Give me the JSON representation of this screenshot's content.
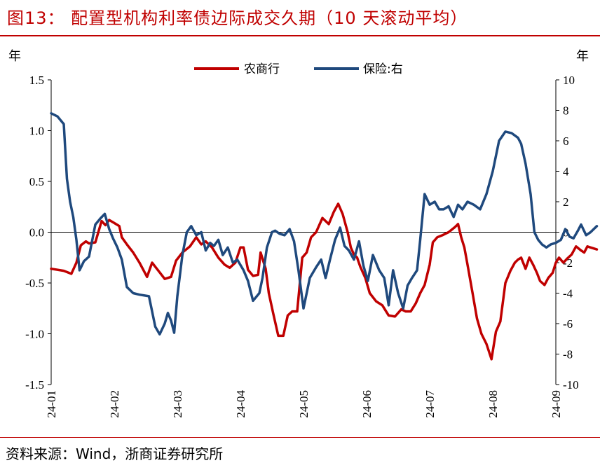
{
  "header": {
    "title": "图13：  配置型机构利率债边际成交久期（10 天滚动平均）",
    "left_unit": "年",
    "right_unit": "年"
  },
  "footer": {
    "source": "资料来源：Wind，浙商证券研究所"
  },
  "colors": {
    "title": "#c00000",
    "series_1": "#c00000",
    "series_2": "#1f497d"
  },
  "chart_data": {
    "type": "line",
    "title": "配置型机构利率债边际成交久期（10 天滚动平均）",
    "x_ticks": [
      "24-01",
      "24-02",
      "24-03",
      "24-04",
      "24-05",
      "24-06",
      "24-07",
      "24-08",
      "24-09"
    ],
    "y_left": {
      "label": "年",
      "range": [
        -1.5,
        1.5
      ],
      "ticks": [
        "1.5",
        "1.0",
        "0.5",
        "0.0",
        "-0.5",
        "-1.0",
        "-1.5"
      ]
    },
    "y_right": {
      "label": "年",
      "range": [
        -10,
        10
      ],
      "ticks": [
        "10",
        "8",
        "6",
        "4",
        "2",
        "0",
        "-2",
        "-4",
        "-6",
        "-8",
        "-10"
      ]
    },
    "legend": {
      "position": "top"
    },
    "series": [
      {
        "name": "农商行",
        "axis": "left",
        "x": [
          0,
          0.2,
          0.32,
          0.4,
          0.47,
          0.55,
          0.6,
          0.7,
          0.8,
          0.86,
          0.92,
          1.0,
          1.08,
          1.12,
          1.2,
          1.3,
          1.4,
          1.52,
          1.6,
          1.7,
          1.8,
          1.9,
          1.98,
          2.08,
          2.2,
          2.3,
          2.38,
          2.45,
          2.55,
          2.65,
          2.75,
          2.83,
          2.92,
          3.0,
          3.05,
          3.12,
          3.2,
          3.28,
          3.32,
          3.4,
          3.45,
          3.52,
          3.6,
          3.68,
          3.75,
          3.82,
          3.9,
          3.98,
          4.05,
          4.12,
          4.2,
          4.3,
          4.4,
          4.48,
          4.55,
          4.62,
          4.7,
          4.75,
          4.8,
          4.85,
          4.9,
          4.98,
          5.05,
          5.15,
          5.25,
          5.35,
          5.45,
          5.55,
          5.62,
          5.7,
          5.78,
          5.85,
          5.92,
          6.0,
          6.05,
          6.12,
          6.2,
          6.3,
          6.4,
          6.45,
          6.5,
          6.55,
          6.6,
          6.68,
          6.75,
          6.82,
          6.9,
          6.98,
          7.05,
          7.12,
          7.2,
          7.28,
          7.35,
          7.4,
          7.45,
          7.52,
          7.58,
          7.64,
          7.7,
          7.75,
          7.82,
          7.88,
          7.95,
          8.0,
          8.05,
          8.12,
          8.18,
          8.25,
          8.32,
          8.4,
          8.45,
          8.5,
          8.55,
          8.6,
          8.65
        ],
        "values": [
          -0.36,
          -0.38,
          -0.41,
          -0.3,
          -0.13,
          -0.09,
          -0.11,
          -0.1,
          0.11,
          0.07,
          0.12,
          0.09,
          0.06,
          -0.05,
          -0.12,
          -0.2,
          -0.3,
          -0.44,
          -0.3,
          -0.38,
          -0.46,
          -0.44,
          -0.28,
          -0.2,
          -0.14,
          -0.05,
          -0.12,
          -0.09,
          -0.15,
          -0.25,
          -0.32,
          -0.35,
          -0.3,
          -0.15,
          -0.15,
          -0.37,
          -0.43,
          -0.42,
          -0.2,
          -0.36,
          -0.6,
          -0.8,
          -1.02,
          -1.02,
          -0.82,
          -0.78,
          -0.78,
          -0.25,
          -0.2,
          -0.05,
          0.0,
          0.14,
          0.08,
          0.2,
          0.28,
          0.18,
          0.0,
          -0.15,
          -0.22,
          -0.25,
          -0.34,
          -0.45,
          -0.6,
          -0.68,
          -0.72,
          -0.82,
          -0.83,
          -0.76,
          -0.78,
          -0.78,
          -0.7,
          -0.6,
          -0.52,
          -0.32,
          -0.1,
          -0.05,
          -0.03,
          0.0,
          0.05,
          0.08,
          -0.05,
          -0.15,
          -0.32,
          -0.6,
          -0.85,
          -1.0,
          -1.1,
          -1.25,
          -0.98,
          -0.88,
          -0.5,
          -0.38,
          -0.3,
          -0.27,
          -0.25,
          -0.36,
          -0.25,
          -0.32,
          -0.4,
          -0.48,
          -0.52,
          -0.45,
          -0.4,
          -0.3,
          -0.25,
          -0.3,
          -0.26,
          -0.22,
          -0.14,
          -0.18,
          -0.2,
          -0.14,
          -0.15,
          -0.16,
          -0.17
        ]
      },
      {
        "name": "保险:右",
        "axis": "right",
        "x": [
          0,
          0.1,
          0.2,
          0.25,
          0.3,
          0.35,
          0.4,
          0.45,
          0.52,
          0.6,
          0.7,
          0.78,
          0.85,
          0.92,
          0.98,
          1.05,
          1.12,
          1.2,
          1.25,
          1.3,
          1.4,
          1.55,
          1.65,
          1.72,
          1.8,
          1.85,
          1.9,
          1.95,
          2.0,
          2.08,
          2.15,
          2.22,
          2.3,
          2.38,
          2.45,
          2.52,
          2.58,
          2.65,
          2.72,
          2.8,
          2.88,
          2.95,
          3.05,
          3.12,
          3.2,
          3.3,
          3.35,
          3.42,
          3.5,
          3.55,
          3.62,
          3.7,
          3.78,
          3.85,
          3.92,
          4.0,
          4.1,
          4.2,
          4.28,
          4.35,
          4.42,
          4.5,
          4.58,
          4.65,
          4.72,
          4.8,
          4.88,
          4.95,
          5.02,
          5.1,
          5.2,
          5.28,
          5.35,
          5.42,
          5.5,
          5.58,
          5.65,
          5.72,
          5.8,
          5.85,
          5.92,
          6.0,
          6.08,
          6.15,
          6.22,
          6.3,
          6.38,
          6.45,
          6.52,
          6.6,
          6.7,
          6.8,
          6.9,
          7.0,
          7.1,
          7.2,
          7.3,
          7.4,
          7.45,
          7.52,
          7.6,
          7.66,
          7.72,
          7.78,
          7.85,
          7.92,
          8.0,
          8.08,
          8.15,
          8.22,
          8.28,
          8.35,
          8.4,
          8.48,
          8.55,
          8.6,
          8.65
        ],
        "values": [
          7.8,
          7.6,
          7.1,
          3.5,
          2.0,
          1.0,
          -0.5,
          -2.5,
          -1.9,
          -1.6,
          0.5,
          0.9,
          1.2,
          0.2,
          -0.4,
          -1.0,
          -1.8,
          -3.6,
          -3.8,
          -4.0,
          -4.1,
          -4.2,
          -6.2,
          -6.7,
          -6.0,
          -5.3,
          -5.8,
          -6.6,
          -4.2,
          -1.5,
          0.0,
          0.4,
          -0.2,
          0.0,
          -1.2,
          -0.7,
          -0.9,
          -0.5,
          -1.5,
          -1.0,
          -2.0,
          -1.8,
          -2.5,
          -3.2,
          -4.5,
          -4.0,
          -3.0,
          -1.0,
          0.0,
          0.1,
          -0.1,
          -0.2,
          0.2,
          -0.6,
          -2.5,
          -5.0,
          -3.0,
          -2.3,
          -1.8,
          -3.0,
          -1.8,
          -0.5,
          0.3,
          -0.9,
          -1.2,
          -1.8,
          -0.6,
          -2.2,
          -3.2,
          -1.5,
          -2.5,
          -3.0,
          -4.8,
          -2.5,
          -4.0,
          -5.0,
          -3.5,
          -3.0,
          -2.5,
          -0.5,
          2.5,
          1.8,
          2.0,
          1.5,
          1.5,
          1.7,
          1.0,
          1.8,
          1.5,
          2.0,
          1.8,
          1.5,
          2.5,
          4.0,
          6.0,
          6.6,
          6.5,
          6.2,
          5.8,
          4.5,
          2.5,
          0.0,
          -0.5,
          -0.8,
          -1.0,
          -0.8,
          -0.7,
          -0.5,
          0.2,
          -0.3,
          -0.4,
          0.1,
          0.5,
          -0.2,
          0.0,
          0.2,
          0.4
        ]
      }
    ]
  }
}
